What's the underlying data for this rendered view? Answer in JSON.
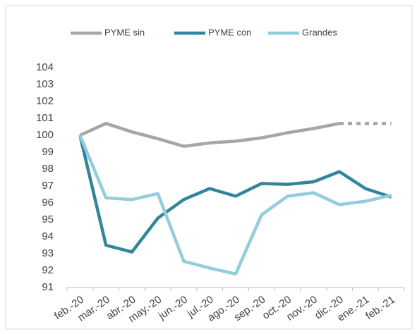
{
  "chart_data": {
    "type": "line",
    "categories": [
      "feb.-20",
      "mar.-20",
      "abr.-20",
      "may.-20",
      "jun.-20",
      "jul.-20",
      "ago.-20",
      "sep.-20",
      "oct.-20",
      "nov.-20",
      "dic.-20",
      "ene.-21",
      "feb.-21"
    ],
    "series": [
      {
        "name": "PYME sin",
        "color": "#a6a6a6",
        "dashed_from_index": 10,
        "values": [
          100,
          100.7,
          100.2,
          99.8,
          99.35,
          99.55,
          99.65,
          99.85,
          100.15,
          100.4,
          100.7,
          100.7,
          100.7
        ]
      },
      {
        "name": "PYME con",
        "color": "#31859c",
        "values": [
          100,
          93.5,
          93.1,
          95.1,
          96.2,
          96.85,
          96.4,
          97.15,
          97.1,
          97.25,
          97.85,
          96.85,
          96.35
        ]
      },
      {
        "name": "Grandes",
        "color": "#93cddd",
        "values": [
          100,
          96.3,
          96.2,
          96.55,
          92.55,
          92.15,
          91.8,
          95.3,
          96.4,
          96.6,
          95.9,
          96.1,
          96.45
        ]
      }
    ],
    "ylim": [
      91,
      104
    ],
    "yticks": [
      91,
      92,
      93,
      94,
      95,
      96,
      97,
      98,
      99,
      100,
      101,
      102,
      103,
      104
    ],
    "grid": false,
    "legend": "top"
  }
}
